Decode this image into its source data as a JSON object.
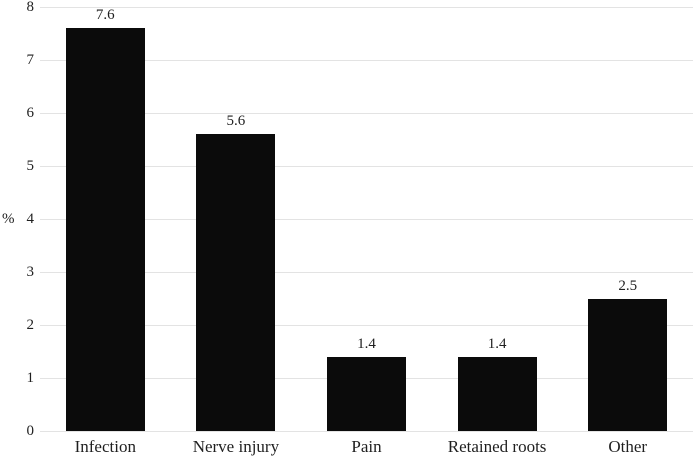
{
  "chart_data": {
    "type": "bar",
    "categories": [
      "Infection",
      "Nerve injury",
      "Pain",
      "Retained roots",
      "Other"
    ],
    "values": [
      7.6,
      5.6,
      1.4,
      1.4,
      2.5
    ],
    "bar_labels": [
      "7.6",
      "5.6",
      "1.4",
      "1.4",
      "2.5"
    ],
    "title": "",
    "xlabel": "",
    "ylabel": "%",
    "ylim": [
      0,
      8
    ],
    "yticks": [
      0,
      1,
      2,
      3,
      4,
      5,
      6,
      7,
      8
    ],
    "ytick_labels": [
      "0",
      "1",
      "2",
      "3",
      "4",
      "5",
      "6",
      "7",
      "8"
    ],
    "ylabel_at_tick": 4,
    "grid": "horizontal",
    "legend": "none",
    "colors": {
      "bar": "#0b0b0b",
      "gridline": "#e3e3e3",
      "axis_text": "#1f1f1f",
      "background": "#ffffff"
    }
  }
}
